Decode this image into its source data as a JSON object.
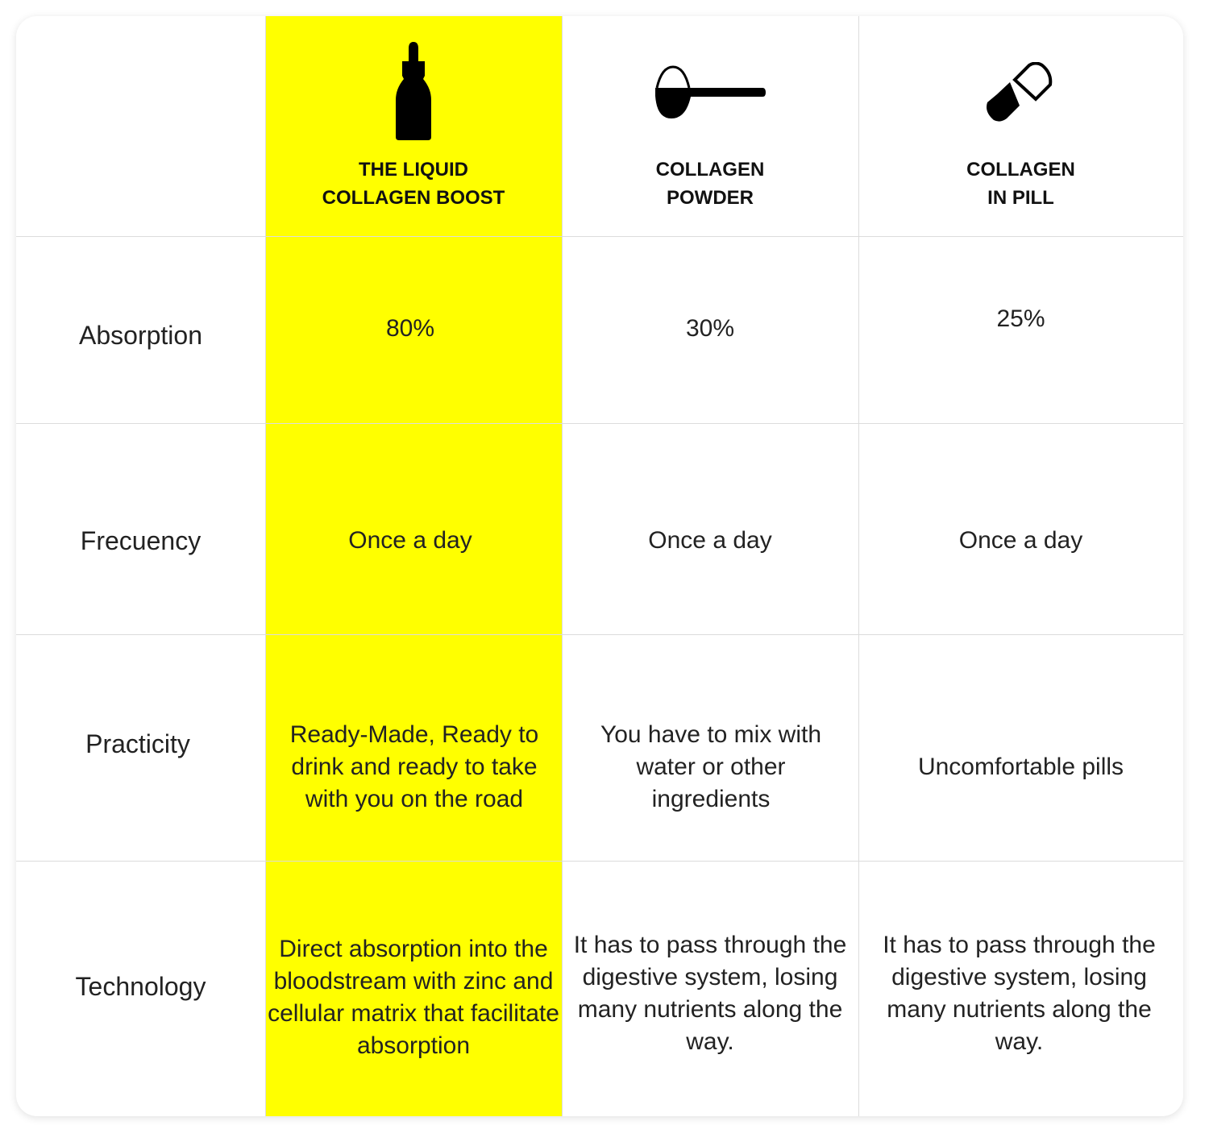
{
  "highlight_color": "#FFFF00",
  "columns": [
    {
      "title": "THE LIQUID\nCOLLAGEN BOOST",
      "icon": "dropper-bottle-icon"
    },
    {
      "title": "COLLAGEN\nPOWDER",
      "icon": "scoop-icon"
    },
    {
      "title": "COLLAGEN\nIN PILL",
      "icon": "capsule-icon"
    }
  ],
  "rows": [
    {
      "label": "Absorption",
      "values": [
        "80%",
        "30%",
        "25%"
      ]
    },
    {
      "label": "Frecuency",
      "values": [
        "Once a day",
        "Once a day",
        "Once a day"
      ]
    },
    {
      "label": "Practicity",
      "values": [
        "Ready-Made, Ready to drink and ready to take with you on the road",
        "You have to mix with water or other ingredients",
        "Uncomfortable pills"
      ]
    },
    {
      "label": "Technology",
      "values": [
        "Direct absorption into the bloodstream with zinc and cellular matrix that facilitate absorption",
        "It has to pass through the digestive system, losing many nutrients along the way.",
        "It has to pass through the digestive system, losing many nutrients along the way."
      ]
    }
  ]
}
